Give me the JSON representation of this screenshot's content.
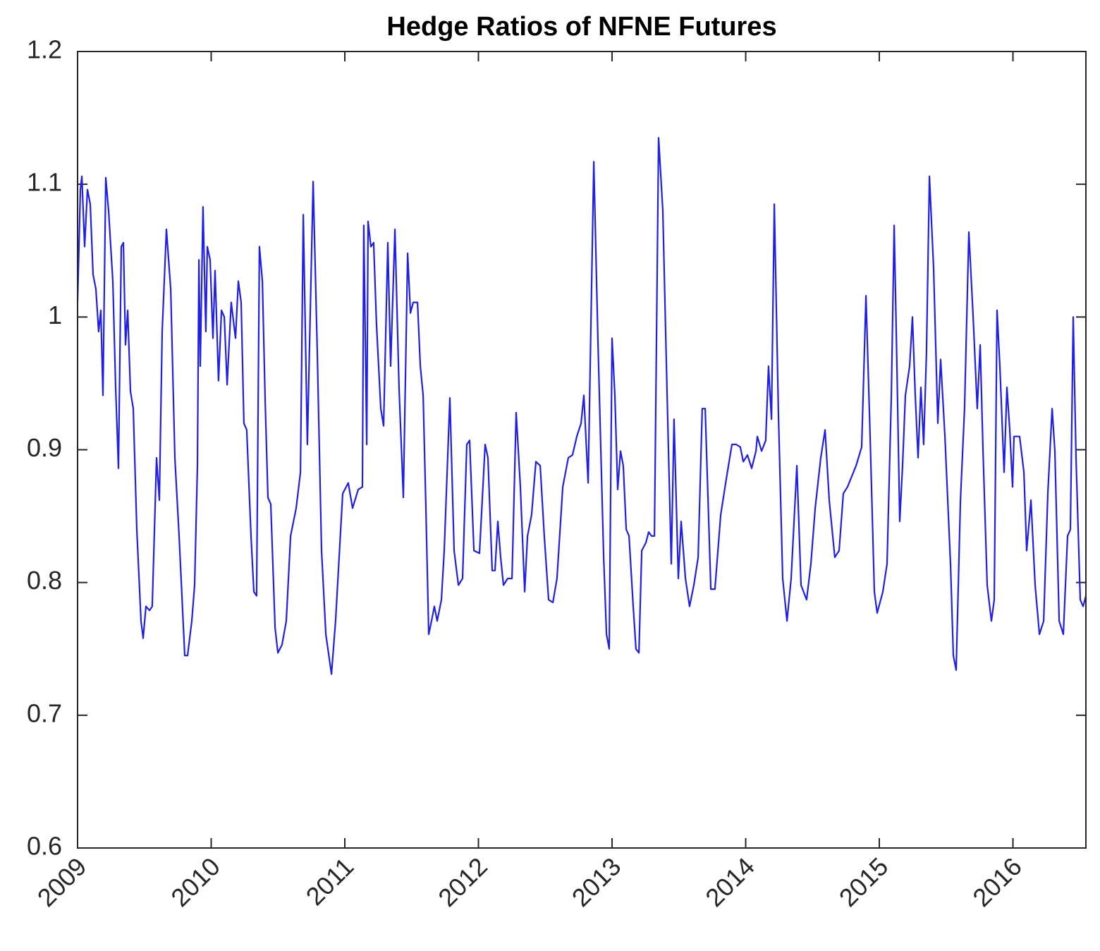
{
  "chart_data": {
    "type": "line",
    "title": "Hedge Ratios of NFNE Futures",
    "x": [
      2009,
      2009.021,
      2009.032,
      2009.053,
      2009.074,
      2009.095,
      2009.116,
      2009.137,
      2009.158,
      2009.174,
      2009.19,
      2009.211,
      2009.232,
      2009.264,
      2009.285,
      2009.306,
      2009.327,
      2009.343,
      2009.359,
      2009.375,
      2009.396,
      2009.417,
      2009.443,
      2009.475,
      2009.491,
      2009.512,
      2009.538,
      2009.559,
      2009.591,
      2009.612,
      2009.633,
      2009.665,
      2009.697,
      2009.728,
      2009.76,
      2009.802,
      2009.823,
      2009.855,
      2009.876,
      2009.897,
      2009.908,
      2009.918,
      2009.939,
      2009.96,
      2009.971,
      2009.992,
      2010.013,
      2010.029,
      2010.055,
      2010.077,
      2010.098,
      2010.119,
      2010.15,
      2010.182,
      2010.203,
      2010.224,
      2010.245,
      2010.266,
      2010.298,
      2010.319,
      2010.34,
      2010.361,
      2010.383,
      2010.404,
      2010.425,
      2010.446,
      2010.478,
      2010.499,
      2010.53,
      2010.562,
      2010.594,
      2010.636,
      2010.668,
      2010.689,
      2010.72,
      2010.763,
      2010.794,
      2010.826,
      2010.858,
      2010.9,
      2010.931,
      2010.984,
      2011.026,
      2011.058,
      2011.1,
      2011.132,
      2011.142,
      2011.164,
      2011.174,
      2011.195,
      2011.216,
      2011.237,
      2011.269,
      2011.29,
      2011.322,
      2011.343,
      2011.375,
      2011.406,
      2011.438,
      2011.47,
      2011.491,
      2011.512,
      2011.544,
      2011.565,
      2011.586,
      2011.607,
      2011.628,
      2011.649,
      2011.67,
      2011.691,
      2011.723,
      2011.744,
      2011.786,
      2011.818,
      2011.85,
      2011.881,
      2011.913,
      2011.934,
      2011.966,
      2012.008,
      2012.05,
      2012.071,
      2012.103,
      2012.124,
      2012.145,
      2012.166,
      2012.187,
      2012.219,
      2012.251,
      2012.282,
      2012.314,
      2012.346,
      2012.367,
      2012.398,
      2012.43,
      2012.462,
      2012.493,
      2012.525,
      2012.557,
      2012.588,
      2012.631,
      2012.673,
      2012.704,
      2012.736,
      2012.768,
      2012.789,
      2012.821,
      2012.863,
      2012.894,
      2012.937,
      2012.958,
      2012.979,
      2013,
      2013.021,
      2013.042,
      2013.063,
      2013.084,
      2013.106,
      2013.127,
      2013.158,
      2013.179,
      2013.201,
      2013.222,
      2013.253,
      2013.274,
      2013.296,
      2013.317,
      2013.348,
      2013.38,
      2013.412,
      2013.443,
      2013.464,
      2013.496,
      2013.517,
      2013.549,
      2013.58,
      2013.612,
      2013.644,
      2013.675,
      2013.697,
      2013.739,
      2013.77,
      2013.813,
      2013.855,
      2013.897,
      2013.929,
      2013.96,
      2013.982,
      2014.013,
      2014.045,
      2014.077,
      2014.087,
      2014.119,
      2014.15,
      2014.171,
      2014.193,
      2014.214,
      2014.245,
      2014.277,
      2014.309,
      2014.34,
      2014.383,
      2014.414,
      2014.456,
      2014.488,
      2014.52,
      2014.562,
      2014.594,
      2014.625,
      2014.667,
      2014.699,
      2014.731,
      2014.762,
      2014.794,
      2014.826,
      2014.868,
      2014.9,
      2014.931,
      2014.963,
      2014.984,
      2015.026,
      2015.058,
      2015.09,
      2015.111,
      2015.132,
      2015.153,
      2015.174,
      2015.195,
      2015.227,
      2015.248,
      2015.269,
      2015.29,
      2015.311,
      2015.332,
      2015.353,
      2015.375,
      2015.406,
      2015.438,
      2015.459,
      2015.491,
      2015.533,
      2015.554,
      2015.575,
      2015.607,
      2015.638,
      2015.67,
      2015.702,
      2015.733,
      2015.755,
      2015.776,
      2015.807,
      2015.839,
      2015.86,
      2015.881,
      2015.902,
      2015.934,
      2015.955,
      2015.976,
      2015.997,
      2016.008,
      2016.05,
      2016.082,
      2016.103,
      2016.135,
      2016.166,
      2016.198,
      2016.23,
      2016.261,
      2016.293,
      2016.314,
      2016.346,
      2016.377,
      2016.409,
      2016.43,
      2016.451,
      2016.472,
      2016.504,
      2016.525,
      2016.546
    ],
    "series": [
      {
        "color": "#1f1fe6",
        "values": [
          1.011,
          1.096,
          1.106,
          1.053,
          1.096,
          1.085,
          1.032,
          1.021,
          0.989,
          1.005,
          0.941,
          1.105,
          1.08,
          1.027,
          0.947,
          0.886,
          1.053,
          1.056,
          0.979,
          1.005,
          0.944,
          0.931,
          0.84,
          0.771,
          0.758,
          0.782,
          0.779,
          0.782,
          0.894,
          0.862,
          0.989,
          1.066,
          1.021,
          0.894,
          0.835,
          0.745,
          0.745,
          0.771,
          0.798,
          0.888,
          1.043,
          0.963,
          1.083,
          0.989,
          1.053,
          1.043,
          0.984,
          1.035,
          0.952,
          1.005,
          1,
          0.949,
          1.011,
          0.984,
          1.027,
          1.011,
          0.92,
          0.915,
          0.835,
          0.793,
          0.79,
          1.053,
          1.027,
          0.936,
          0.864,
          0.859,
          0.766,
          0.747,
          0.753,
          0.771,
          0.835,
          0.856,
          0.883,
          1.077,
          0.904,
          1.102,
          0.973,
          0.824,
          0.761,
          0.731,
          0.771,
          0.867,
          0.875,
          0.856,
          0.87,
          0.872,
          1.069,
          0.904,
          1.072,
          1.053,
          1.056,
          0.995,
          0.931,
          0.918,
          1.056,
          0.963,
          1.066,
          0.947,
          0.864,
          1.048,
          1.003,
          1.011,
          1.011,
          0.963,
          0.941,
          0.856,
          0.761,
          0.771,
          0.782,
          0.771,
          0.787,
          0.824,
          0.939,
          0.824,
          0.798,
          0.803,
          0.904,
          0.907,
          0.824,
          0.822,
          0.904,
          0.894,
          0.809,
          0.809,
          0.846,
          0.819,
          0.798,
          0.803,
          0.803,
          0.928,
          0.872,
          0.793,
          0.835,
          0.851,
          0.891,
          0.888,
          0.835,
          0.787,
          0.785,
          0.803,
          0.872,
          0.894,
          0.896,
          0.91,
          0.92,
          0.941,
          0.875,
          1.117,
          0.984,
          0.819,
          0.761,
          0.75,
          0.984,
          0.941,
          0.87,
          0.899,
          0.888,
          0.84,
          0.835,
          0.782,
          0.75,
          0.747,
          0.824,
          0.83,
          0.838,
          0.835,
          0.835,
          1.135,
          1.08,
          0.941,
          0.814,
          0.923,
          0.803,
          0.846,
          0.803,
          0.782,
          0.798,
          0.819,
          0.931,
          0.931,
          0.795,
          0.795,
          0.851,
          0.878,
          0.904,
          0.904,
          0.902,
          0.891,
          0.896,
          0.886,
          0.899,
          0.91,
          0.899,
          0.907,
          0.963,
          0.923,
          1.085,
          0.926,
          0.803,
          0.771,
          0.803,
          0.888,
          0.798,
          0.787,
          0.814,
          0.856,
          0.894,
          0.915,
          0.862,
          0.819,
          0.824,
          0.867,
          0.872,
          0.88,
          0.888,
          0.902,
          1.016,
          0.91,
          0.793,
          0.777,
          0.793,
          0.814,
          0.941,
          1.069,
          0.963,
          0.846,
          0.888,
          0.941,
          0.963,
          1,
          0.941,
          0.894,
          0.947,
          0.904,
          0.973,
          1.106,
          1.037,
          0.92,
          0.968,
          0.91,
          0.814,
          0.745,
          0.734,
          0.862,
          0.931,
          1.064,
          1,
          0.931,
          0.979,
          0.899,
          0.798,
          0.771,
          0.787,
          1.005,
          0.963,
          0.883,
          0.947,
          0.915,
          0.872,
          0.91,
          0.91,
          0.883,
          0.824,
          0.862,
          0.798,
          0.761,
          0.771,
          0.867,
          0.931,
          0.899,
          0.771,
          0.761,
          0.835,
          0.84,
          1,
          0.894,
          0.787,
          0.782,
          0.79
        ]
      }
    ],
    "xlim": [
      2009,
      2016.546
    ],
    "xticks": [
      2009,
      2010,
      2011,
      2012,
      2013,
      2014,
      2015,
      2016
    ],
    "ylim": [
      0.6,
      1.2
    ],
    "yticks": [
      0.6,
      0.7,
      0.8,
      0.9,
      1,
      1.1,
      1.2
    ]
  }
}
